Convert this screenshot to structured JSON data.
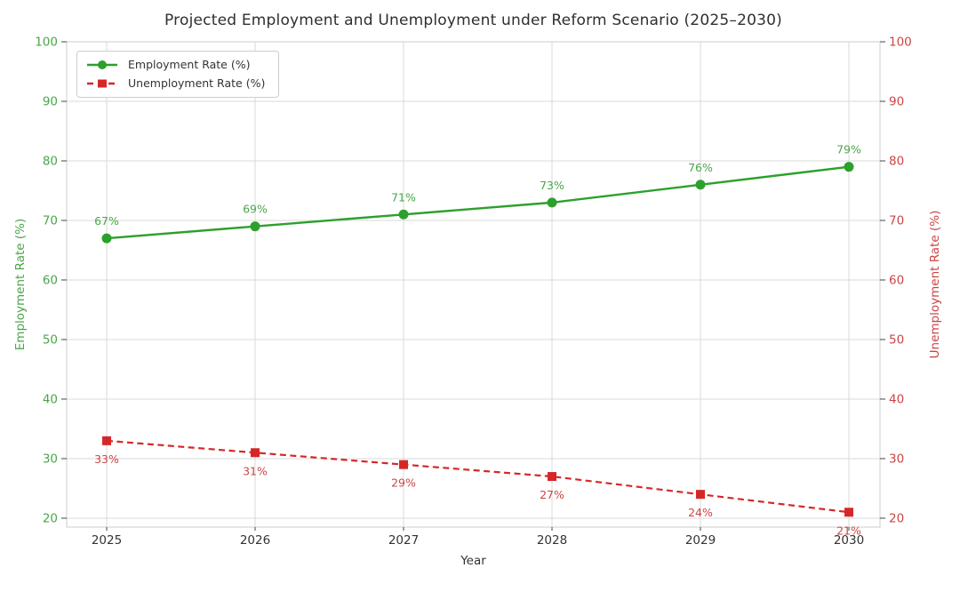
{
  "chart_data": {
    "type": "line",
    "title": "Projected Employment and Unemployment under Reform Scenario (2025–2030)",
    "xlabel": "Year",
    "ylabel_left": "Employment Rate (%)",
    "ylabel_right": "Unemployment Rate (%)",
    "x_categories": [
      "2025",
      "2026",
      "2027",
      "2028",
      "2029",
      "2030"
    ],
    "y_ticks": [
      20,
      30,
      40,
      50,
      60,
      70,
      80,
      90,
      100
    ],
    "ylim": [
      18.5,
      100
    ],
    "grid": true,
    "legend_position": "upper left",
    "series": [
      {
        "id": "employment",
        "name": "Employment Rate (%)",
        "axis": "left",
        "color": "#2ca02c",
        "text_color": "#4aa54a",
        "line_style": "solid",
        "marker": "circle",
        "values": [
          67,
          69,
          71,
          73,
          76,
          79
        ],
        "labels": [
          "67%",
          "69%",
          "71%",
          "73%",
          "76%",
          "79%"
        ],
        "label_position": "above"
      },
      {
        "id": "unemployment",
        "name": "Unemployment Rate (%)",
        "axis": "right",
        "color": "#d62728",
        "text_color": "#cc4444",
        "line_style": "dashed",
        "marker": "square",
        "values": [
          33,
          31,
          29,
          27,
          24,
          21
        ],
        "labels": [
          "33%",
          "31%",
          "29%",
          "27%",
          "24%",
          "21%"
        ],
        "label_position": "below"
      }
    ],
    "colors": {
      "employment": "#2ca02c",
      "employment_text": "#4aa54a",
      "unemployment": "#d62728",
      "unemployment_text": "#cc4444",
      "grid": "#d8d8d8",
      "spine": "#cccccc",
      "tick_mark": "#444444",
      "dark_text": "#333333"
    }
  }
}
